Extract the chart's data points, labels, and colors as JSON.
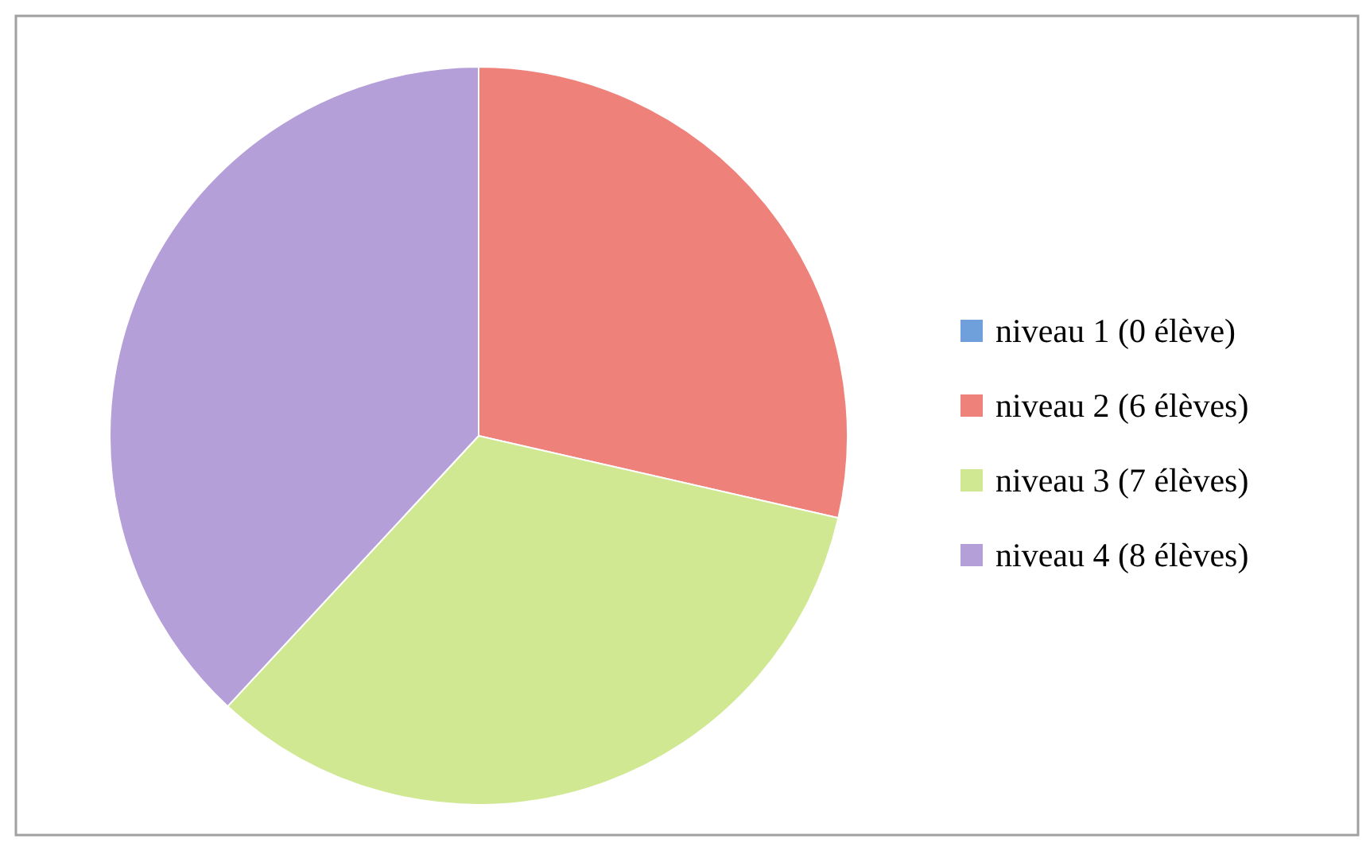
{
  "chart_data": {
    "type": "pie",
    "categories": [
      "niveau 1 (0 élève)",
      "niveau 2 (6 élèves)",
      "niveau 3 (7 élèves)",
      "niveau 4 (8 élèves)"
    ],
    "values": [
      0,
      6,
      7,
      8
    ],
    "colors": [
      "#6fa0dc",
      "#ee8179",
      "#d0e892",
      "#b59fd8"
    ],
    "legend": "right"
  }
}
